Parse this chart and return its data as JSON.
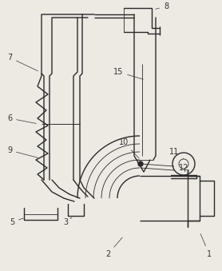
{
  "bg_color": "#ede9e3",
  "line_color": "#2a2a2a",
  "lw": 1.0,
  "lw_thin": 0.6,
  "fig_width": 2.78,
  "fig_height": 3.39,
  "dpi": 100
}
